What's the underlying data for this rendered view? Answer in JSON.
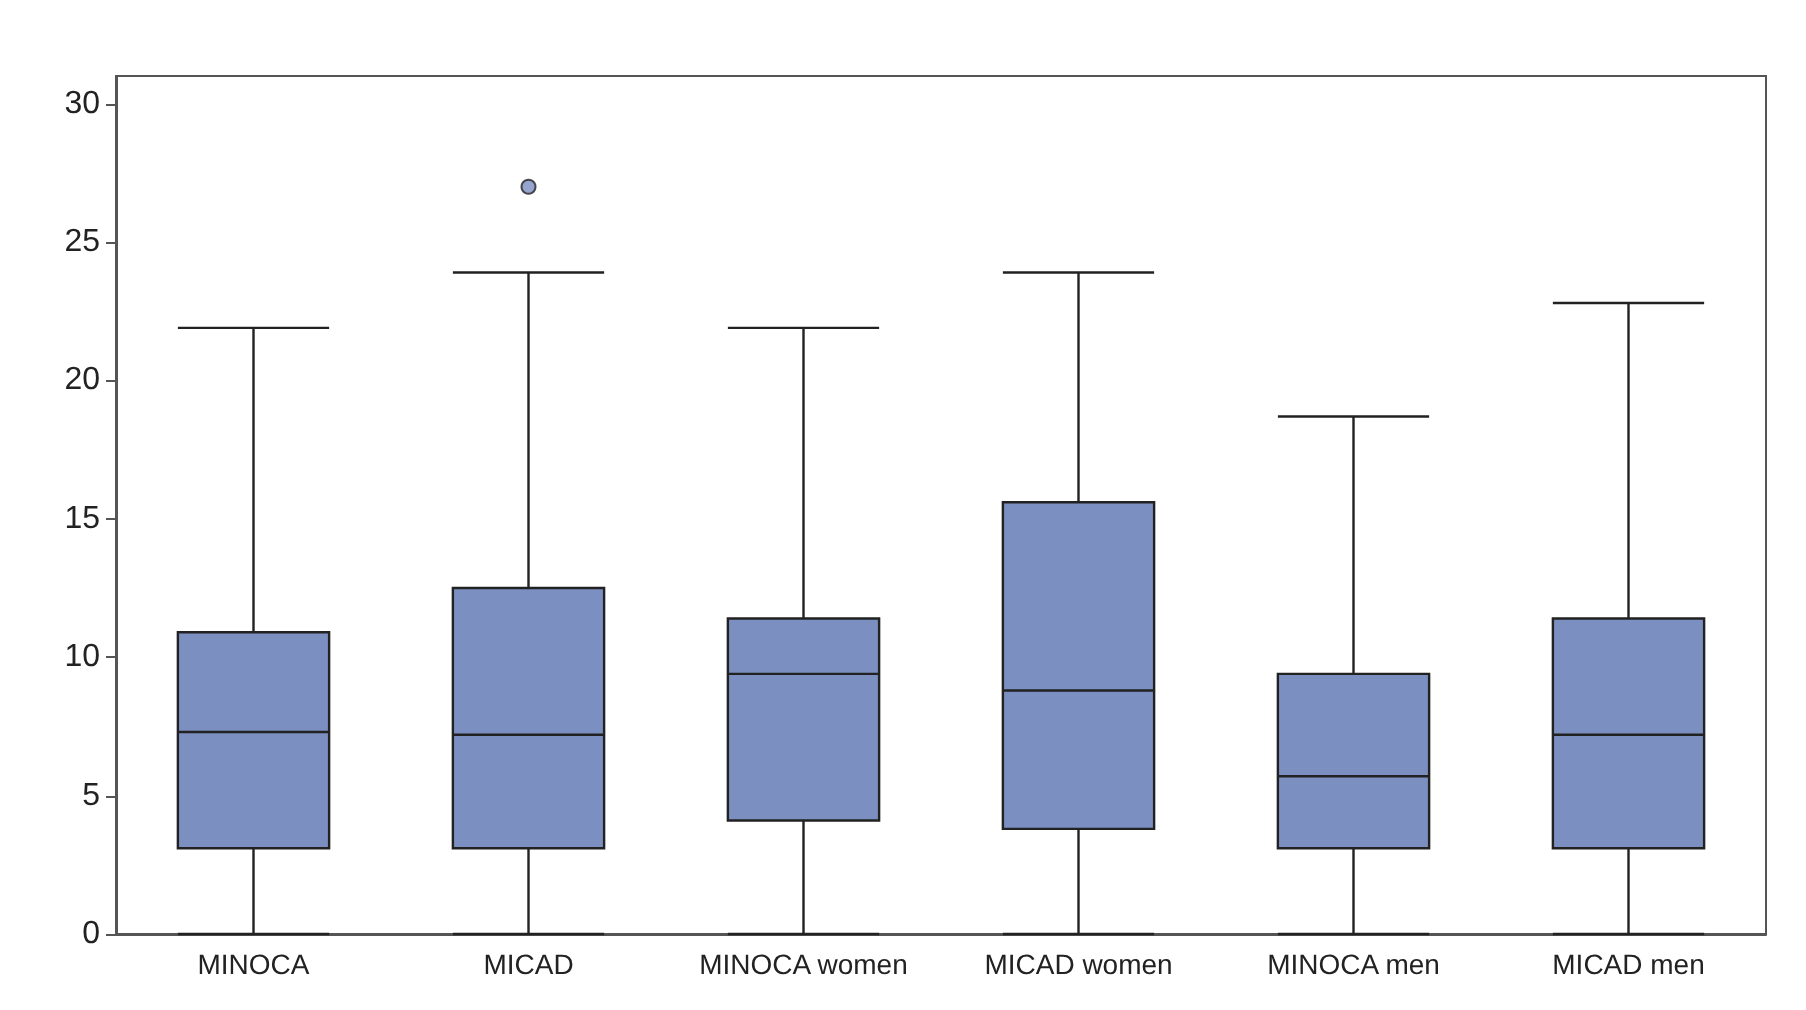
{
  "chart_data": {
    "type": "box",
    "categories": [
      "MINOCA",
      "MICAD",
      "MINOCA women",
      "MICAD women",
      "MINOCA men",
      "MICAD men"
    ],
    "color": "#7b8fc1",
    "boxes": [
      {
        "low": 0,
        "q1": 3.1,
        "median": 7.3,
        "q3": 10.9,
        "high": 21.9
      },
      {
        "low": 0,
        "q1": 3.1,
        "median": 7.2,
        "q3": 12.5,
        "high": 23.9,
        "outliers": [
          27
        ]
      },
      {
        "low": 0,
        "q1": 4.1,
        "median": 9.4,
        "q3": 11.4,
        "high": 21.9
      },
      {
        "low": 0,
        "q1": 3.8,
        "median": 8.8,
        "q3": 15.6,
        "high": 23.9
      },
      {
        "low": 0,
        "q1": 3.1,
        "median": 5.7,
        "q3": 9.4,
        "high": 18.7
      },
      {
        "low": 0,
        "q1": 3.1,
        "median": 7.2,
        "q3": 11.4,
        "high": 22.8
      }
    ],
    "ylim": [
      0,
      31
    ],
    "yticks": [
      0,
      5,
      10,
      15,
      20,
      25,
      30
    ],
    "grid": false
  }
}
